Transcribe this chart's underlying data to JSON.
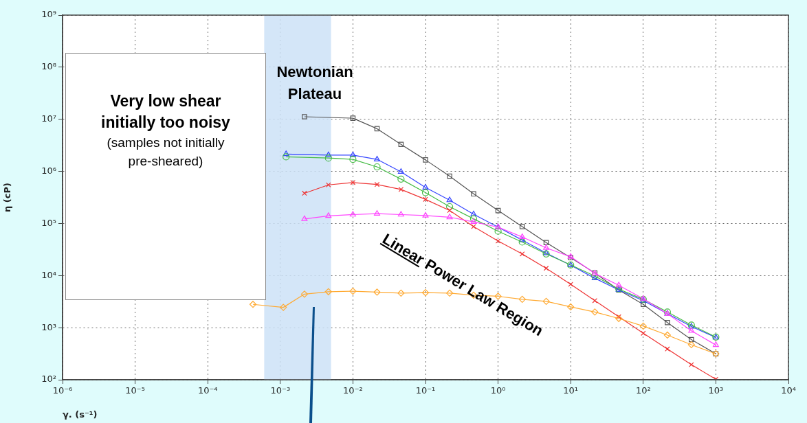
{
  "chart_data": {
    "type": "line",
    "xlabel": "γ. (s⁻¹)",
    "ylabel": "η (cP)",
    "log": "xy",
    "grid": true,
    "legend": false,
    "line_style": "solid",
    "xlim": [
      1e-06,
      10000
    ],
    "ylim": [
      100,
      1000000000
    ],
    "xticks": [
      {
        "value": 1e-06,
        "label": "10⁻⁶"
      },
      {
        "value": 1e-05,
        "label": "10⁻⁵"
      },
      {
        "value": 0.0001,
        "label": "10⁻⁴"
      },
      {
        "value": 0.001,
        "label": "10⁻³"
      },
      {
        "value": 0.01,
        "label": "10⁻²"
      },
      {
        "value": 0.1,
        "label": "10⁻¹"
      },
      {
        "value": 1,
        "label": "10⁰"
      },
      {
        "value": 10,
        "label": "10¹"
      },
      {
        "value": 100,
        "label": "10²"
      },
      {
        "value": 1000,
        "label": "10³"
      },
      {
        "value": 10000,
        "label": "10⁴"
      }
    ],
    "yticks": [
      {
        "value": 100,
        "label": "10²"
      },
      {
        "value": 1000,
        "label": "10³"
      },
      {
        "value": 10000,
        "label": "10⁴"
      },
      {
        "value": 100000,
        "label": "10⁵"
      },
      {
        "value": 1000000,
        "label": "10⁶"
      },
      {
        "value": 10000000,
        "label": "10⁷"
      },
      {
        "value": 100000000,
        "label": "10⁸"
      },
      {
        "value": 1000000000,
        "label": "10⁹"
      }
    ],
    "series": [
      {
        "color": "#555555",
        "marker": "square",
        "x": [
          0.00215,
          0.01,
          0.0215,
          0.046,
          0.1,
          0.215,
          0.46,
          1,
          2.15,
          4.6,
          10,
          21.5,
          46,
          100,
          215,
          460,
          1000
        ],
        "values": [
          11200000,
          10500000,
          6600000,
          3300000,
          1660000,
          810000,
          370000,
          177000,
          87000,
          43000,
          22000,
          11200,
          5300,
          2800,
          1250,
          590,
          315
        ]
      },
      {
        "color": "#3344ff",
        "marker": "triangle",
        "x": [
          0.0012,
          0.0046,
          0.01,
          0.0215,
          0.046,
          0.1,
          0.215,
          0.46,
          1,
          2.15,
          4.6,
          10,
          21.5,
          46,
          100,
          215,
          460,
          1000
        ],
        "values": [
          2150000,
          2050000,
          2050000,
          1700000,
          980000,
          490000,
          280000,
          150000,
          85000,
          48000,
          27000,
          15800,
          8900,
          5300,
          3300,
          1860,
          1050,
          650
        ]
      },
      {
        "color": "#44bb44",
        "marker": "circle",
        "x": [
          0.0012,
          0.0046,
          0.01,
          0.0215,
          0.046,
          0.1,
          0.215,
          0.46,
          1,
          2.15,
          4.6,
          10,
          21.5,
          46,
          100,
          215,
          460,
          1000
        ],
        "values": [
          1900000,
          1800000,
          1700000,
          1220000,
          710000,
          390000,
          210000,
          123000,
          71000,
          44000,
          26000,
          16000,
          9800,
          5500,
          3500,
          2000,
          1120,
          660
        ]
      },
      {
        "color": "#ee3333",
        "marker": "cross",
        "x": [
          0.00215,
          0.0046,
          0.01,
          0.0215,
          0.046,
          0.1,
          0.215,
          0.46,
          1,
          2.15,
          4.6,
          10,
          21.5,
          46,
          100,
          215,
          460,
          1000
        ],
        "values": [
          380000,
          550000,
          610000,
          560000,
          450000,
          290000,
          178000,
          87000,
          46000,
          26000,
          13800,
          6800,
          3300,
          1620,
          780,
          390,
          195,
          102
        ]
      },
      {
        "color": "#ff44ff",
        "marker": "triangle",
        "x": [
          0.00215,
          0.0046,
          0.01,
          0.0215,
          0.046,
          0.1,
          0.215,
          0.46,
          1,
          2.15,
          4.6,
          10,
          21.5,
          46,
          100,
          215,
          460,
          1000
        ],
        "values": [
          122000,
          140000,
          148000,
          154000,
          148000,
          142000,
          132000,
          107000,
          85000,
          55000,
          34000,
          23000,
          11000,
          6500,
          3600,
          1850,
          870,
          465
        ]
      },
      {
        "color": "#ffaa33",
        "marker": "diamond",
        "x": [
          0.00042,
          0.0011,
          0.00215,
          0.0046,
          0.01,
          0.0215,
          0.046,
          0.1,
          0.215,
          0.46,
          1,
          2.15,
          4.6,
          10,
          21.5,
          46,
          100,
          215,
          460,
          1000
        ],
        "values": [
          2800,
          2450,
          4400,
          4900,
          5000,
          4800,
          4600,
          4700,
          4600,
          4200,
          4000,
          3500,
          3200,
          2500,
          2000,
          1500,
          1070,
          720,
          470,
          315
        ]
      }
    ],
    "bands": [
      {
        "axis": "x",
        "from": 0.0006,
        "to": 0.005,
        "label": "Newtonian Plateau",
        "color": "#cde2f7"
      }
    ],
    "annotations": [
      "Very low shear initially too noisy",
      "(samples not initially pre-sheared)",
      "Linear Power Law Region"
    ]
  }
}
